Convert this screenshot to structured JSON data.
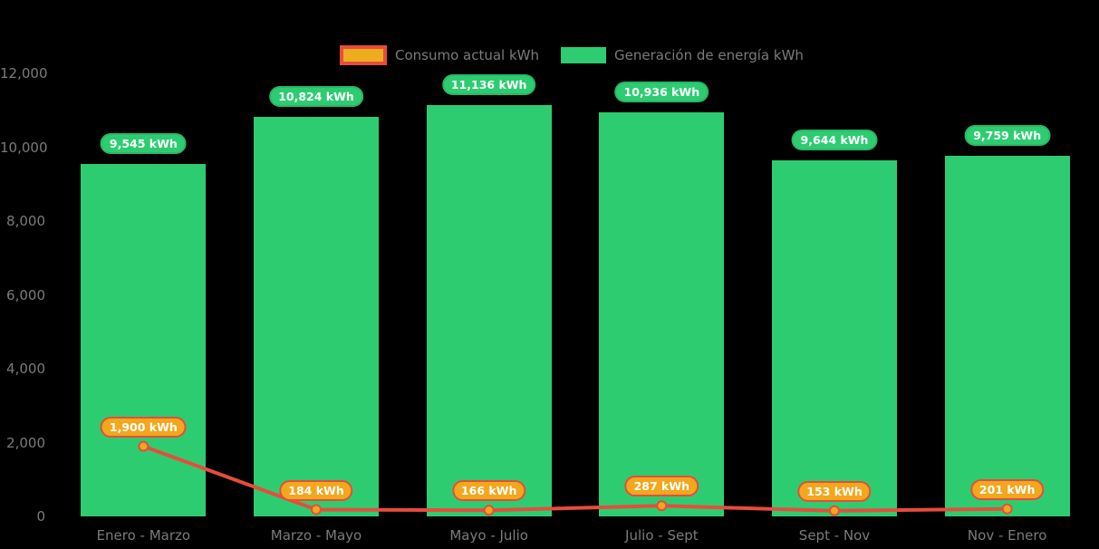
{
  "chart_data": {
    "type": "bar",
    "subtype": "bar-and-line-combo",
    "categories": [
      "Enero - Marzo",
      "Marzo - Mayo",
      "Mayo - Julio",
      "Julio - Sept",
      "Sept - Nov",
      "Nov - Enero"
    ],
    "series": [
      {
        "name": "Consumo actual kWh",
        "type": "line",
        "line_color": "#E74C3C",
        "marker_fill": "#F2A71D",
        "marker_stroke": "#E74C3C",
        "values": [
          1900,
          184,
          166,
          287,
          153,
          201
        ],
        "labels": [
          "1,900 kWh",
          "184 kWh",
          "166 kWh",
          "287 kWh",
          "153 kWh",
          "201 kWh"
        ]
      },
      {
        "name": "Generación de energía kWh",
        "type": "bar",
        "color": "#2ECC71",
        "values": [
          9545,
          10824,
          11136,
          10936,
          9644,
          9759
        ],
        "labels": [
          "9,545 kWh",
          "10,824 kWh",
          "11,136 kWh",
          "10,936 kWh",
          "9,644 kWh",
          "9,759 kWh"
        ]
      }
    ],
    "title": "",
    "xlabel": "",
    "ylabel": "",
    "ylim": [
      0,
      12000
    ],
    "y_ticks": [
      {
        "value": 12000,
        "label": "12,000"
      },
      {
        "value": 10000,
        "label": "10,000"
      },
      {
        "value": 8000,
        "label": "8,000"
      },
      {
        "value": 6000,
        "label": "6,000"
      },
      {
        "value": 4000,
        "label": "4,000"
      },
      {
        "value": 2000,
        "label": "2,000"
      },
      {
        "value": 0,
        "label": "0"
      }
    ],
    "grid": false,
    "legend_position": "top",
    "background": "#000000",
    "axis_text_color": "#7B7B7B",
    "value_label_text_color": "#FFFFFF"
  }
}
